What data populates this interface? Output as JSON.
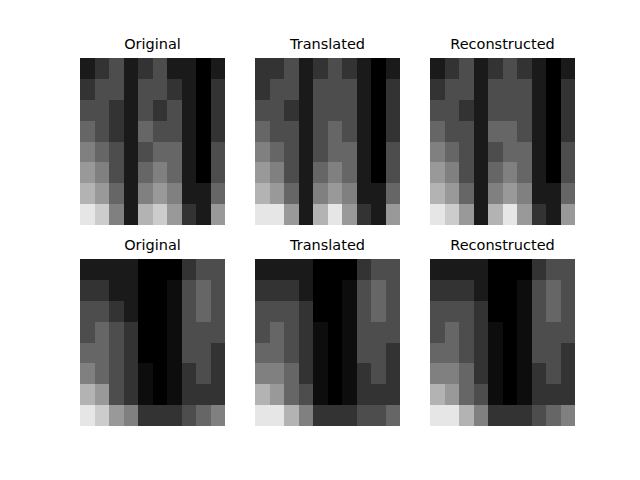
{
  "chart_data": [
    {
      "type": "heatmap",
      "title": "Original",
      "color": "gray",
      "color_range": [
        0,
        1
      ],
      "tick_labels": false,
      "cells": [
        [
          0.1,
          0.2,
          0.3,
          0.1,
          0.2,
          0.3,
          0.1,
          0.1,
          0,
          0.1
        ],
        [
          0.2,
          0.3,
          0.3,
          0.1,
          0.3,
          0.3,
          0.2,
          0.1,
          0,
          0.2
        ],
        [
          0.3,
          0.3,
          0.2,
          0.1,
          0.3,
          0.2,
          0.3,
          0.1,
          0,
          0.2
        ],
        [
          0.4,
          0.3,
          0.2,
          0.1,
          0.4,
          0.3,
          0.3,
          0.1,
          0,
          0.2
        ],
        [
          0.5,
          0.4,
          0.3,
          0.1,
          0.3,
          0.4,
          0.4,
          0.1,
          0,
          0.3
        ],
        [
          0.6,
          0.5,
          0.3,
          0.1,
          0.4,
          0.5,
          0.4,
          0.1,
          0,
          0.3
        ],
        [
          0.7,
          0.6,
          0.4,
          0.1,
          0.5,
          0.6,
          0.5,
          0.1,
          0.1,
          0.4
        ],
        [
          0.9,
          0.8,
          0.5,
          0.1,
          0.7,
          0.8,
          0.6,
          0.2,
          0.1,
          0.6
        ]
      ]
    },
    {
      "type": "heatmap",
      "title": "Translated",
      "color": "gray",
      "color_range": [
        0,
        1
      ],
      "tick_labels": false,
      "cells": [
        [
          0.2,
          0.2,
          0.3,
          0.1,
          0.2,
          0.3,
          0.2,
          0.1,
          0,
          0.1
        ],
        [
          0.2,
          0.3,
          0.3,
          0.1,
          0.3,
          0.3,
          0.3,
          0.1,
          0,
          0.2
        ],
        [
          0.3,
          0.3,
          0.2,
          0.1,
          0.3,
          0.3,
          0.3,
          0.1,
          0,
          0.2
        ],
        [
          0.4,
          0.3,
          0.3,
          0.1,
          0.3,
          0.4,
          0.3,
          0.1,
          0,
          0.2
        ],
        [
          0.5,
          0.4,
          0.3,
          0.1,
          0.3,
          0.4,
          0.4,
          0.1,
          0,
          0.3
        ],
        [
          0.6,
          0.5,
          0.3,
          0.1,
          0.4,
          0.5,
          0.4,
          0.1,
          0,
          0.3
        ],
        [
          0.7,
          0.6,
          0.4,
          0.1,
          0.5,
          0.6,
          0.5,
          0.1,
          0.1,
          0.4
        ],
        [
          0.9,
          0.9,
          0.6,
          0.1,
          0.7,
          0.9,
          0.6,
          0.2,
          0.1,
          0.6
        ]
      ]
    },
    {
      "type": "heatmap",
      "title": "Reconstructed",
      "color": "gray",
      "color_range": [
        0,
        1
      ],
      "tick_labels": false,
      "cells": [
        [
          0.1,
          0.2,
          0.3,
          0.1,
          0.2,
          0.3,
          0.2,
          0.1,
          0,
          0.1
        ],
        [
          0.2,
          0.3,
          0.3,
          0.1,
          0.3,
          0.3,
          0.3,
          0.1,
          0,
          0.2
        ],
        [
          0.3,
          0.3,
          0.2,
          0.1,
          0.3,
          0.3,
          0.3,
          0.1,
          0,
          0.2
        ],
        [
          0.4,
          0.3,
          0.3,
          0.1,
          0.4,
          0.4,
          0.3,
          0.1,
          0,
          0.2
        ],
        [
          0.5,
          0.4,
          0.3,
          0.1,
          0.3,
          0.4,
          0.4,
          0.1,
          0,
          0.3
        ],
        [
          0.6,
          0.5,
          0.3,
          0.1,
          0.4,
          0.5,
          0.4,
          0.1,
          0,
          0.3
        ],
        [
          0.7,
          0.6,
          0.4,
          0.1,
          0.5,
          0.6,
          0.5,
          0.1,
          0.1,
          0.4
        ],
        [
          0.9,
          0.8,
          0.6,
          0.1,
          0.7,
          0.9,
          0.6,
          0.2,
          0.1,
          0.6
        ]
      ]
    },
    {
      "type": "heatmap",
      "title": "Original",
      "color": "gray",
      "color_range": [
        0,
        1
      ],
      "tick_labels": false,
      "cells": [
        [
          0.1,
          0.1,
          0.1,
          0.1,
          0,
          0,
          0,
          0.2,
          0.3,
          0.3
        ],
        [
          0.2,
          0.2,
          0.1,
          0.1,
          0,
          0,
          0.05,
          0.3,
          0.4,
          0.3
        ],
        [
          0.3,
          0.3,
          0.2,
          0.1,
          0,
          0,
          0.05,
          0.3,
          0.4,
          0.3
        ],
        [
          0.3,
          0.4,
          0.3,
          0.2,
          0,
          0,
          0.05,
          0.3,
          0.3,
          0.3
        ],
        [
          0.4,
          0.4,
          0.3,
          0.2,
          0,
          0,
          0.05,
          0.3,
          0.3,
          0.2
        ],
        [
          0.5,
          0.4,
          0.3,
          0.2,
          0.05,
          0,
          0.05,
          0.2,
          0.3,
          0.2
        ],
        [
          0.7,
          0.6,
          0.3,
          0.2,
          0.05,
          0,
          0.05,
          0.2,
          0.2,
          0.2
        ],
        [
          0.9,
          0.8,
          0.6,
          0.5,
          0.2,
          0.2,
          0.2,
          0.3,
          0.4,
          0.5
        ]
      ]
    },
    {
      "type": "heatmap",
      "title": "Translated",
      "color": "gray",
      "color_range": [
        0,
        1
      ],
      "tick_labels": false,
      "cells": [
        [
          0.1,
          0.1,
          0.1,
          0.1,
          0,
          0,
          0,
          0.2,
          0.3,
          0.3
        ],
        [
          0.2,
          0.2,
          0.2,
          0.1,
          0,
          0,
          0.05,
          0.3,
          0.4,
          0.3
        ],
        [
          0.3,
          0.3,
          0.3,
          0.2,
          0,
          0,
          0.05,
          0.3,
          0.4,
          0.3
        ],
        [
          0.3,
          0.4,
          0.3,
          0.2,
          0.05,
          0,
          0.05,
          0.3,
          0.3,
          0.3
        ],
        [
          0.4,
          0.4,
          0.3,
          0.2,
          0.05,
          0,
          0.05,
          0.3,
          0.3,
          0.2
        ],
        [
          0.5,
          0.5,
          0.4,
          0.2,
          0.05,
          0,
          0.05,
          0.2,
          0.3,
          0.2
        ],
        [
          0.7,
          0.6,
          0.4,
          0.3,
          0.05,
          0,
          0.05,
          0.2,
          0.2,
          0.2
        ],
        [
          0.9,
          0.9,
          0.7,
          0.5,
          0.2,
          0.2,
          0.2,
          0.3,
          0.3,
          0.4
        ]
      ]
    },
    {
      "type": "heatmap",
      "title": "Reconstructed",
      "color": "gray",
      "color_range": [
        0,
        1
      ],
      "tick_labels": false,
      "cells": [
        [
          0.1,
          0.1,
          0.1,
          0.1,
          0,
          0,
          0,
          0.2,
          0.3,
          0.3
        ],
        [
          0.2,
          0.2,
          0.2,
          0.1,
          0,
          0,
          0.05,
          0.3,
          0.4,
          0.3
        ],
        [
          0.3,
          0.3,
          0.3,
          0.2,
          0,
          0,
          0.05,
          0.3,
          0.4,
          0.3
        ],
        [
          0.3,
          0.4,
          0.3,
          0.2,
          0.05,
          0,
          0.05,
          0.3,
          0.3,
          0.3
        ],
        [
          0.4,
          0.4,
          0.3,
          0.2,
          0.05,
          0,
          0.05,
          0.3,
          0.3,
          0.2
        ],
        [
          0.5,
          0.5,
          0.4,
          0.2,
          0.05,
          0,
          0.05,
          0.2,
          0.3,
          0.2
        ],
        [
          0.7,
          0.6,
          0.4,
          0.3,
          0.05,
          0,
          0.05,
          0.2,
          0.2,
          0.2
        ],
        [
          0.9,
          0.9,
          0.7,
          0.5,
          0.2,
          0.2,
          0.2,
          0.3,
          0.4,
          0.5
        ]
      ]
    }
  ]
}
